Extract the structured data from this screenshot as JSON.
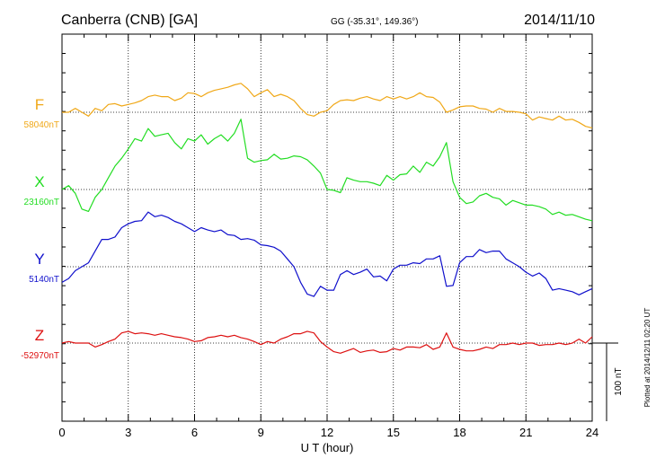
{
  "header": {
    "station": "Canberra (CNB)  [GA]",
    "coords": "GG (-35.31°, 149.36°)",
    "date": "2014/11/10"
  },
  "plotted_note": "Plotted at 2014/12/11 02:20 UT",
  "colors": {
    "F": "#f0a818",
    "X": "#22dd22",
    "Y": "#1010cc",
    "Z": "#dd1010",
    "grid": "#000000"
  },
  "chart_data": {
    "type": "line",
    "xlabel": "U T (hour)",
    "xlim": [
      0,
      24
    ],
    "x_ticks": [
      0,
      3,
      6,
      9,
      12,
      15,
      18,
      21,
      24
    ],
    "scale_bar_label": "100 nT",
    "scale_bar_nT": 100,
    "series": [
      {
        "name": "F",
        "baseline_label": "58040nT",
        "baseline_nT": 58040,
        "x": [
          0,
          0.3,
          0.6,
          0.9,
          1.2,
          1.5,
          1.8,
          2.1,
          2.4,
          2.7,
          3.0,
          3.3,
          3.6,
          3.9,
          4.2,
          4.5,
          4.8,
          5.1,
          5.4,
          5.7,
          6.0,
          6.3,
          6.6,
          6.9,
          7.2,
          7.5,
          7.8,
          8.1,
          8.4,
          8.7,
          9.0,
          9.3,
          9.6,
          9.9,
          10.2,
          10.5,
          10.8,
          11.1,
          11.4,
          11.7,
          12.0,
          12.3,
          12.6,
          12.9,
          13.2,
          13.5,
          13.8,
          14.1,
          14.4,
          14.7,
          15.0,
          15.3,
          15.6,
          15.9,
          16.2,
          16.5,
          16.8,
          17.1,
          17.4,
          17.7,
          18.0,
          18.3,
          18.6,
          18.9,
          19.2,
          19.5,
          19.8,
          20.1,
          20.4,
          20.7,
          21.0,
          21.3,
          21.6,
          21.9,
          22.2,
          22.5,
          22.8,
          23.1,
          23.4,
          23.7,
          24.0
        ],
        "values": [
          58040,
          58040,
          58045,
          58040,
          58035,
          58045,
          58042,
          58050,
          58051,
          58048,
          58050,
          58052,
          58055,
          58060,
          58062,
          58060,
          58060,
          58055,
          58058,
          58065,
          58064,
          58060,
          58065,
          58068,
          58070,
          58072,
          58075,
          58077,
          58070,
          58060,
          58065,
          58069,
          58060,
          58063,
          58060,
          58055,
          58045,
          58037,
          58035,
          58040,
          58042,
          58050,
          58055,
          58056,
          58055,
          58058,
          58060,
          58057,
          58055,
          58060,
          58057,
          58060,
          58057,
          58060,
          58065,
          58060,
          58059,
          58053,
          58040,
          58043,
          58047,
          58048,
          58048,
          58045,
          58044,
          58040,
          58045,
          58041,
          58041,
          58040,
          58038,
          58030,
          58034,
          58032,
          58030,
          58035,
          58030,
          58031,
          58027,
          58022,
          58020
        ]
      },
      {
        "name": "X",
        "baseline_label": "23160nT",
        "baseline_nT": 23160,
        "x": [
          0,
          0.3,
          0.6,
          0.9,
          1.2,
          1.5,
          1.8,
          2.1,
          2.4,
          2.7,
          3.0,
          3.3,
          3.6,
          3.9,
          4.2,
          4.5,
          4.8,
          5.1,
          5.4,
          5.7,
          6.0,
          6.3,
          6.6,
          6.9,
          7.2,
          7.5,
          7.8,
          8.1,
          8.4,
          8.7,
          9.0,
          9.3,
          9.6,
          9.9,
          10.2,
          10.5,
          10.8,
          11.1,
          11.4,
          11.7,
          12.0,
          12.3,
          12.6,
          12.9,
          13.2,
          13.5,
          13.8,
          14.1,
          14.4,
          14.7,
          15.0,
          15.3,
          15.6,
          15.9,
          16.2,
          16.5,
          16.8,
          17.1,
          17.4,
          17.7,
          18.0,
          18.3,
          18.6,
          18.9,
          19.2,
          19.5,
          19.8,
          20.1,
          20.4,
          20.7,
          21.0,
          21.3,
          21.6,
          21.9,
          22.2,
          22.5,
          22.8,
          23.1,
          23.4,
          23.7,
          24.0
        ],
        "values": [
          23160,
          23165,
          23155,
          23135,
          23132,
          23150,
          23160,
          23175,
          23190,
          23200,
          23212,
          23225,
          23222,
          23238,
          23228,
          23230,
          23232,
          23220,
          23212,
          23225,
          23222,
          23230,
          23218,
          23225,
          23230,
          23222,
          23232,
          23250,
          23200,
          23195,
          23197,
          23198,
          23205,
          23199,
          23200,
          23203,
          23202,
          23198,
          23190,
          23181,
          23160,
          23159,
          23156,
          23175,
          23172,
          23170,
          23170,
          23168,
          23165,
          23178,
          23172,
          23179,
          23180,
          23190,
          23182,
          23195,
          23190,
          23202,
          23220,
          23170,
          23150,
          23142,
          23144,
          23152,
          23155,
          23150,
          23148,
          23140,
          23146,
          23143,
          23140,
          23140,
          23138,
          23135,
          23128,
          23131,
          23127,
          23128,
          23125,
          23122,
          23120
        ]
      },
      {
        "name": "Y",
        "baseline_label": "5140nT",
        "baseline_nT": 5140,
        "x": [
          0,
          0.3,
          0.6,
          0.9,
          1.2,
          1.5,
          1.8,
          2.1,
          2.4,
          2.7,
          3.0,
          3.3,
          3.6,
          3.9,
          4.2,
          4.5,
          4.8,
          5.1,
          5.4,
          5.7,
          6.0,
          6.3,
          6.6,
          6.9,
          7.2,
          7.5,
          7.8,
          8.1,
          8.4,
          8.7,
          9.0,
          9.3,
          9.6,
          9.9,
          10.2,
          10.5,
          10.8,
          11.1,
          11.4,
          11.7,
          12.0,
          12.3,
          12.6,
          12.9,
          13.2,
          13.5,
          13.8,
          14.1,
          14.4,
          14.7,
          15.0,
          15.3,
          15.6,
          15.9,
          16.2,
          16.5,
          16.8,
          17.1,
          17.4,
          17.7,
          18.0,
          18.3,
          18.6,
          18.9,
          19.2,
          19.5,
          19.8,
          20.1,
          20.4,
          20.7,
          21.0,
          21.3,
          21.6,
          21.9,
          22.2,
          22.5,
          22.8,
          23.1,
          23.4,
          23.7,
          24.0
        ],
        "values": [
          5120,
          5125,
          5135,
          5140,
          5145,
          5160,
          5175,
          5175,
          5178,
          5190,
          5195,
          5198,
          5199,
          5210,
          5204,
          5206,
          5203,
          5198,
          5195,
          5190,
          5185,
          5190,
          5187,
          5185,
          5187,
          5181,
          5180,
          5175,
          5176,
          5174,
          5168,
          5167,
          5165,
          5160,
          5150,
          5140,
          5120,
          5105,
          5102,
          5115,
          5110,
          5110,
          5130,
          5135,
          5130,
          5133,
          5137,
          5127,
          5128,
          5122,
          5137,
          5142,
          5142,
          5145,
          5144,
          5150,
          5150,
          5154,
          5115,
          5116,
          5145,
          5153,
          5153,
          5162,
          5158,
          5160,
          5160,
          5150,
          5145,
          5140,
          5133,
          5128,
          5132,
          5125,
          5110,
          5112,
          5110,
          5108,
          5104,
          5108,
          5112
        ]
      },
      {
        "name": "Z",
        "baseline_label": "-52970nT",
        "baseline_nT": -52970,
        "x": [
          0,
          0.3,
          0.6,
          0.9,
          1.2,
          1.5,
          1.8,
          2.1,
          2.4,
          2.7,
          3.0,
          3.3,
          3.6,
          3.9,
          4.2,
          4.5,
          4.8,
          5.1,
          5.4,
          5.7,
          6.0,
          6.3,
          6.6,
          6.9,
          7.2,
          7.5,
          7.8,
          8.1,
          8.4,
          8.7,
          9.0,
          9.3,
          9.6,
          9.9,
          10.2,
          10.5,
          10.8,
          11.1,
          11.4,
          11.7,
          12.0,
          12.3,
          12.6,
          12.9,
          13.2,
          13.5,
          13.8,
          14.1,
          14.4,
          14.7,
          15.0,
          15.3,
          15.6,
          15.9,
          16.2,
          16.5,
          16.8,
          17.1,
          17.4,
          17.7,
          18.0,
          18.3,
          18.6,
          18.9,
          19.2,
          19.5,
          19.8,
          20.1,
          20.4,
          20.7,
          21.0,
          21.3,
          21.6,
          21.9,
          22.2,
          22.5,
          22.8,
          23.1,
          23.4,
          23.7,
          24.0
        ],
        "values": [
          -52970,
          -52968,
          -52970,
          -52970,
          -52970,
          -52975,
          -52972,
          -52968,
          -52965,
          -52957,
          -52955,
          -52958,
          -52957,
          -52958,
          -52960,
          -52958,
          -52960,
          -52962,
          -52963,
          -52965,
          -52968,
          -52967,
          -52963,
          -52962,
          -52960,
          -52962,
          -52960,
          -52963,
          -52965,
          -52968,
          -52972,
          -52968,
          -52970,
          -52965,
          -52962,
          -52958,
          -52958,
          -52955,
          -52957,
          -52968,
          -52975,
          -52981,
          -52983,
          -52980,
          -52977,
          -52982,
          -52980,
          -52979,
          -52982,
          -52981,
          -52977,
          -52979,
          -52975,
          -52975,
          -52976,
          -52972,
          -52978,
          -52975,
          -52957,
          -52975,
          -52978,
          -52980,
          -52980,
          -52978,
          -52975,
          -52977,
          -52972,
          -52972,
          -52970,
          -52972,
          -52970,
          -52970,
          -52973,
          -52972,
          -52972,
          -52970,
          -52972,
          -52970,
          -52965,
          -52970,
          -52962
        ]
      }
    ]
  }
}
